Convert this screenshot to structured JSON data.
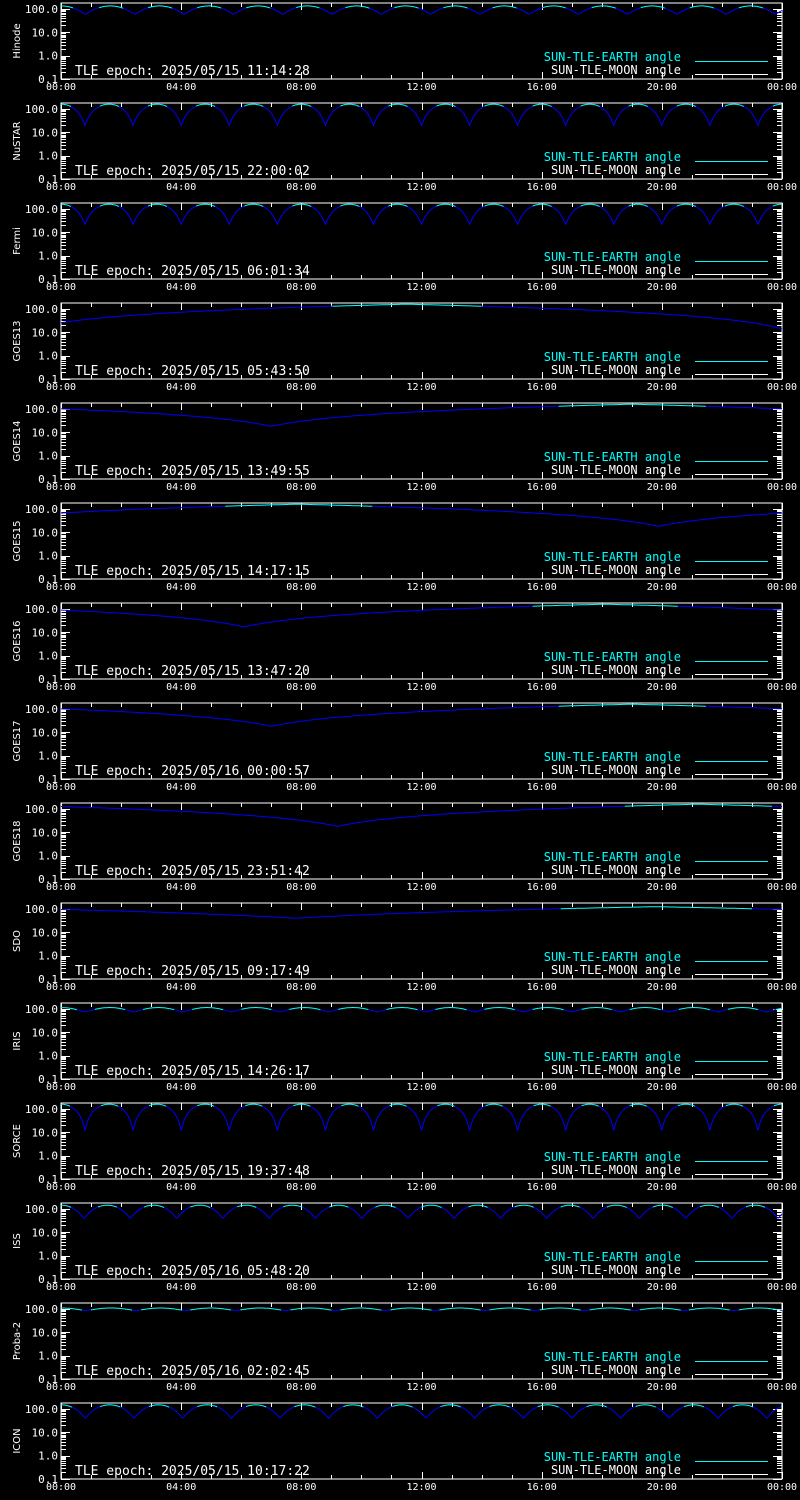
{
  "chart_data": {
    "type": "line",
    "y_scale": "log",
    "x_range": [
      "00:00",
      "00:00 (+1 day)"
    ],
    "ylim": [
      0.1,
      180
    ],
    "x_ticks": [
      "00:00",
      "04:00",
      "08:00",
      "12:00",
      "16:00",
      "20:00",
      "00:00"
    ],
    "y_ticks": [
      "100.0",
      "10.0",
      "1.0",
      "0.1"
    ],
    "legend": {
      "placement": "bottom-right",
      "entries": [
        {
          "label": "SUN-TLE-EARTH angle",
          "color": "#00ffff"
        },
        {
          "label": "SUN-TLE-MOON angle",
          "color": "#ffffff"
        }
      ]
    },
    "colors": {
      "background": "#000000",
      "axes": "#ffffff",
      "earth_line_day": "#00ffff",
      "earth_line_night": "#0000ff",
      "legend_earth": "#00ffff",
      "legend_moon": "#ffffff"
    },
    "panels": [
      {
        "satellite": "Hinode",
        "tle_epoch": "TLE epoch: 2025/05/15 11:14:28",
        "shape": "periodic",
        "period_hours": 1.64,
        "max_angle": 135,
        "min_angle": 60
      },
      {
        "satellite": "NuSTAR",
        "tle_epoch": "TLE epoch: 2025/05/15 22:00:02",
        "shape": "periodic",
        "period_hours": 1.6,
        "max_angle": 160,
        "min_angle": 20
      },
      {
        "satellite": "Fermi",
        "tle_epoch": "TLE epoch: 2025/05/15 06:01:34",
        "shape": "periodic",
        "period_hours": 1.6,
        "max_angle": 160,
        "min_angle": 22
      },
      {
        "satellite": "GOES13",
        "tle_epoch": "TLE epoch: 2025/05/15 05:43:50",
        "shape": "geo",
        "min_hour": -0.5,
        "max_angle": 160,
        "min_angle": 20
      },
      {
        "satellite": "GOES14",
        "tle_epoch": "TLE epoch: 2025/05/15 13:49:55",
        "shape": "geo",
        "min_hour": 7.0,
        "max_angle": 160,
        "min_angle": 18
      },
      {
        "satellite": "GOES15",
        "tle_epoch": "TLE epoch: 2025/05/15 14:17:15",
        "shape": "geo",
        "min_hour": 19.9,
        "max_angle": 160,
        "min_angle": 18
      },
      {
        "satellite": "GOES16",
        "tle_epoch": "TLE epoch: 2025/05/15 13:47:20",
        "shape": "geo",
        "min_hour": 6.1,
        "max_angle": 160,
        "min_angle": 17
      },
      {
        "satellite": "GOES17",
        "tle_epoch": "TLE epoch: 2025/05/16 00:00:57",
        "shape": "geo",
        "min_hour": 7.0,
        "max_angle": 160,
        "min_angle": 18
      },
      {
        "satellite": "GOES18",
        "tle_epoch": "TLE epoch: 2025/05/15 23:51:42",
        "shape": "geo",
        "min_hour": 9.2,
        "max_angle": 160,
        "min_angle": 18
      },
      {
        "satellite": "SDO",
        "tle_epoch": "TLE epoch: 2025/05/15 09:17:49",
        "shape": "geo",
        "min_hour": 7.8,
        "max_angle": 125,
        "min_angle": 40
      },
      {
        "satellite": "IRIS",
        "tle_epoch": "TLE epoch: 2025/05/15 14:26:17",
        "shape": "periodic",
        "period_hours": 1.62,
        "max_angle": 115,
        "min_angle": 75
      },
      {
        "satellite": "SORCE",
        "tle_epoch": "TLE epoch: 2025/05/15 19:37:48",
        "shape": "periodic",
        "period_hours": 1.6,
        "max_angle": 160,
        "min_angle": 12
      },
      {
        "satellite": "ISS",
        "tle_epoch": "TLE epoch: 2025/05/16 05:48:20",
        "shape": "periodic",
        "period_hours": 1.54,
        "max_angle": 145,
        "min_angle": 40
      },
      {
        "satellite": "Proba-2",
        "tle_epoch": "TLE epoch: 2025/05/16 02:02:45",
        "shape": "periodic",
        "period_hours": 1.66,
        "max_angle": 110,
        "min_angle": 85
      },
      {
        "satellite": "ICON",
        "tle_epoch": "TLE epoch: 2025/05/15 10:17:22",
        "shape": "periodic",
        "period_hours": 1.62,
        "max_angle": 150,
        "min_angle": 40
      }
    ]
  }
}
